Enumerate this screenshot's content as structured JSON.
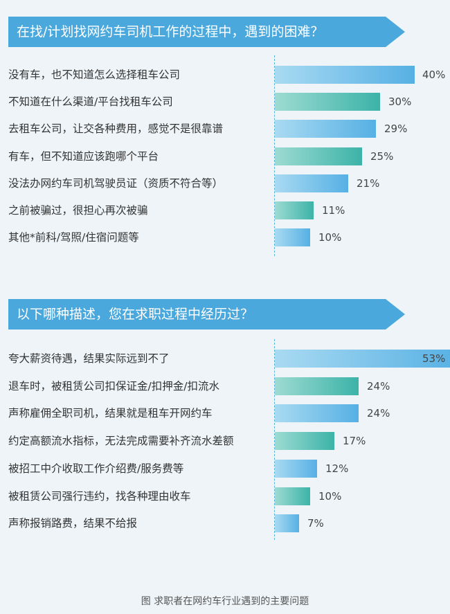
{
  "chart_data": [
    {
      "type": "bar",
      "title": "在找/计划找网约车司机工作的过程中，遇到的困难？",
      "categories": [
        "没有车，也不知道怎么选择租车公司",
        "不知道在什么渠道/平台找租车公司",
        "去租车公司，让交各种费用，感觉不是很靠谱",
        "有车，但不知道应该跑哪个平台",
        "没法办网约车司机驾驶员证（资质不符合等）",
        "之前被骗过，很担心再次被骗",
        "其他*前科/驾照/住宿问题等"
      ],
      "values": [
        40,
        30,
        29,
        25,
        21,
        11,
        10
      ],
      "value_labels": [
        "40%",
        "30%",
        "29%",
        "25%",
        "21%",
        "11%",
        "10%"
      ],
      "bar_colors": [
        "blue",
        "teal",
        "blue",
        "teal",
        "blue",
        "teal",
        "blue"
      ],
      "xlim": [
        0,
        100
      ]
    },
    {
      "type": "bar",
      "title": "以下哪种描述，您在求职过程中经历过？",
      "categories": [
        "夸大薪资待遇，结果实际远到不了",
        "退车时，被租赁公司扣保证金/扣押金/扣流水",
        "声称雇佣全职司机，结果就是租车开网约车",
        "约定高额流水指标，无法完成需要补齐流水差额",
        "被招工中介收取工作介绍费/服务费等",
        "被租赁公司强行违约，找各种理由收车",
        "声称报销路费，结果不给报"
      ],
      "values": [
        53,
        24,
        24,
        17,
        12,
        10,
        7
      ],
      "value_labels": [
        "53%",
        "24%",
        "24%",
        "17%",
        "12%",
        "10%",
        "7%"
      ],
      "bar_colors": [
        "blue",
        "teal",
        "blue",
        "teal",
        "blue",
        "teal",
        "blue"
      ],
      "xlim": [
        0,
        100
      ]
    }
  ],
  "colors": {
    "banner": "#4aa8dc",
    "bar_blue": "#56b0e4",
    "bar_teal": "#3cb3a8",
    "divider": "#52b5d9",
    "background": "#eef4f8"
  },
  "caption": "图 求职者在网约车行业遇到的主要问题"
}
